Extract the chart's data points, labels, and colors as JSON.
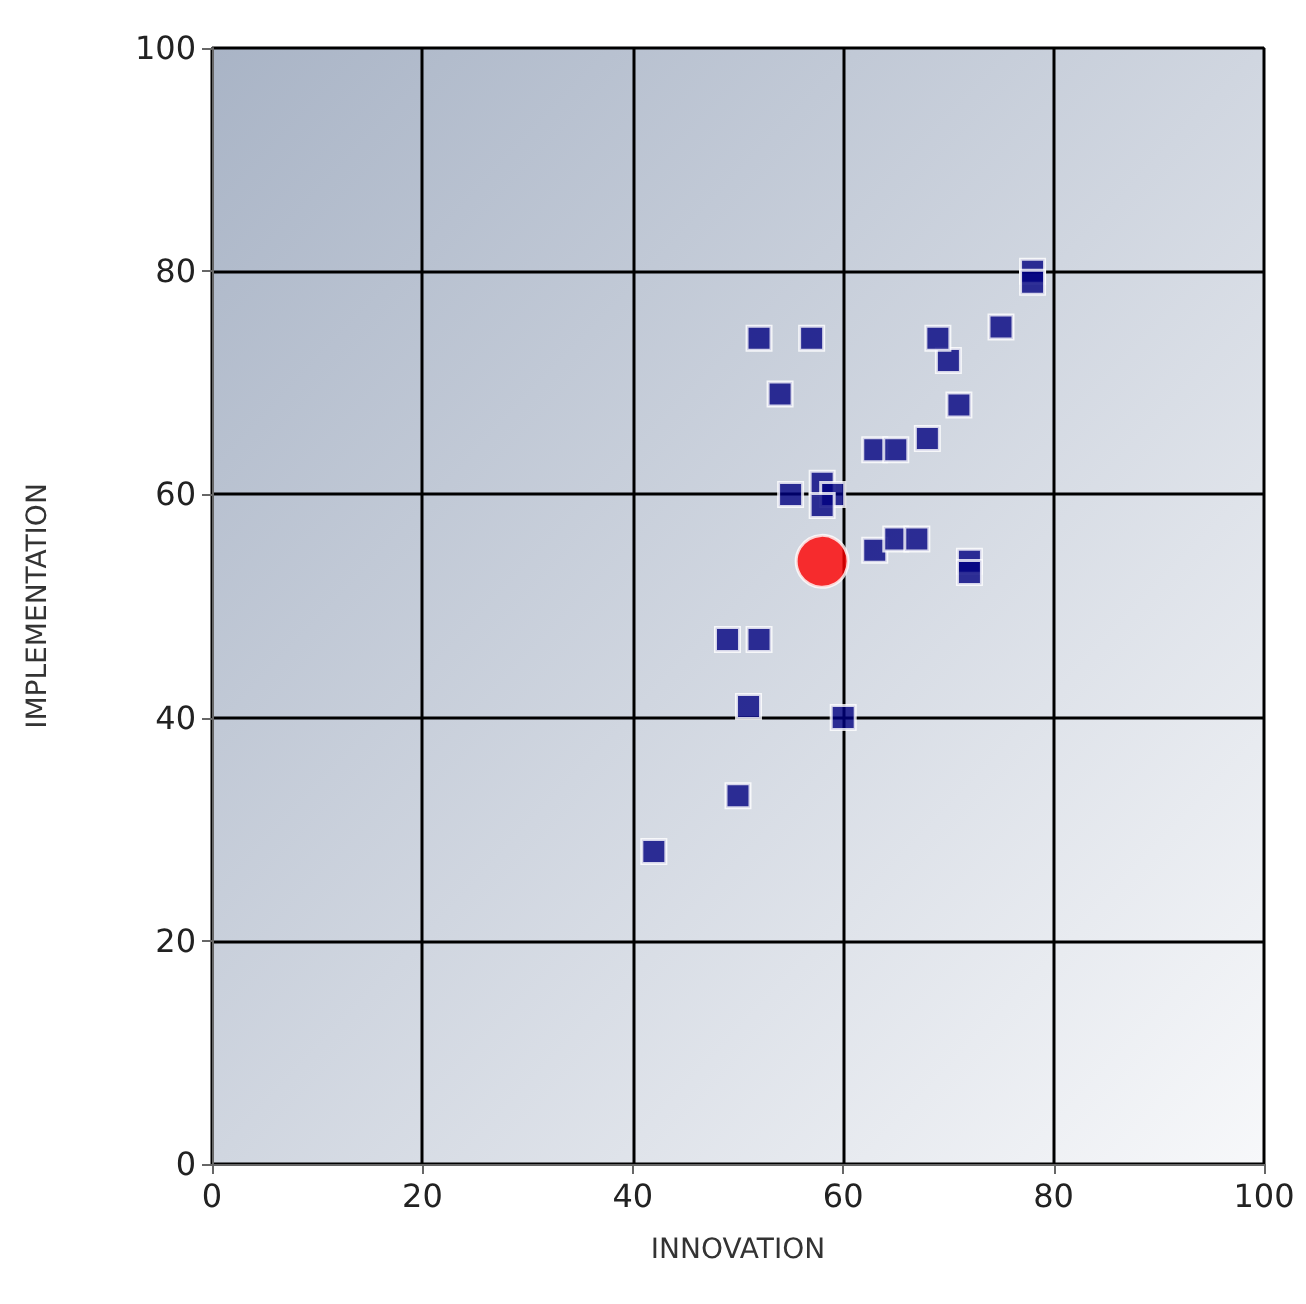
{
  "chart_data": {
    "type": "scatter",
    "xlabel": "INNOVATION",
    "ylabel": "IMPLEMENTATION",
    "xlim": [
      0,
      100
    ],
    "xticks": [
      0,
      20,
      40,
      60,
      80,
      100
    ],
    "ylim": [
      0,
      100
    ],
    "yticks": [
      0,
      20,
      40,
      60,
      80,
      100
    ],
    "grid": true,
    "series": [
      {
        "color": "#000080",
        "marker": "square",
        "x": [
          42,
          50,
          51,
          60,
          49,
          52,
          52,
          57,
          54,
          55,
          58,
          59,
          58,
          63,
          65,
          67,
          63,
          65,
          68,
          71,
          70,
          69,
          75,
          78,
          78,
          72,
          72
        ],
        "values": [
          28,
          33,
          41,
          40,
          47,
          47,
          74,
          74,
          69,
          60,
          61,
          60,
          59,
          55,
          56,
          56,
          64,
          64,
          65,
          68,
          72,
          74,
          75,
          80,
          79,
          54,
          53
        ]
      },
      {
        "color": "#ff0000",
        "marker": "circle",
        "x": [
          58
        ],
        "values": [
          54
        ]
      }
    ]
  }
}
